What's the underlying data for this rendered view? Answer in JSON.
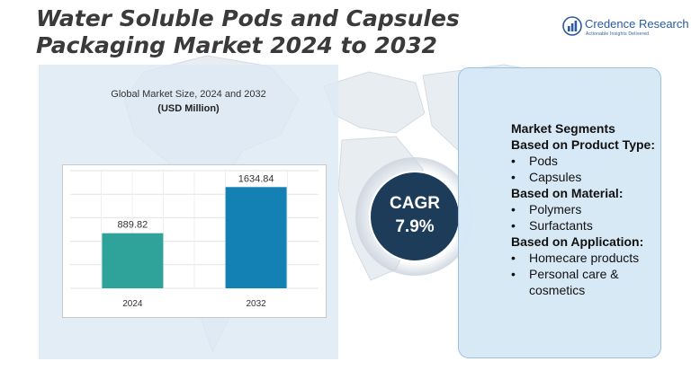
{
  "title": "Water Soluble Pods and Capsules Packaging Market 2024 to 2032",
  "logo": {
    "name": "Credence Research",
    "tagline": "Actionable Insights Delivered",
    "icon": "credence-bars-icon"
  },
  "chart_data": {
    "type": "bar",
    "title": "Global Market Size, 2024 and 2032",
    "subtitle": "(USD Million)",
    "categories": [
      "2024",
      "2032"
    ],
    "values": [
      889.82,
      1634.84
    ],
    "value_labels": [
      "889.82",
      "1634.84"
    ],
    "colors": [
      "#2fa39a",
      "#1481b4"
    ],
    "ylim": [
      0,
      1900
    ],
    "grid": true,
    "legend": "none"
  },
  "cagr": {
    "label": "CAGR",
    "value": "7.9%"
  },
  "segments": {
    "title": "Market Segments",
    "groups": [
      {
        "heading": "Based on Product Type:",
        "items": [
          "Pods",
          "Capsules"
        ]
      },
      {
        "heading": "Based on Material:",
        "items": [
          "Polymers",
          "Surfactants"
        ]
      },
      {
        "heading": "Based on Application:",
        "items": [
          "Homecare products",
          "Personal care & cosmetics"
        ]
      }
    ]
  },
  "colors": {
    "title_text": "#3a3a3a",
    "cagr_circle": "#1d3c5a",
    "panel_background": "#dce9f4",
    "logo_blue": "#2a5aa0"
  }
}
